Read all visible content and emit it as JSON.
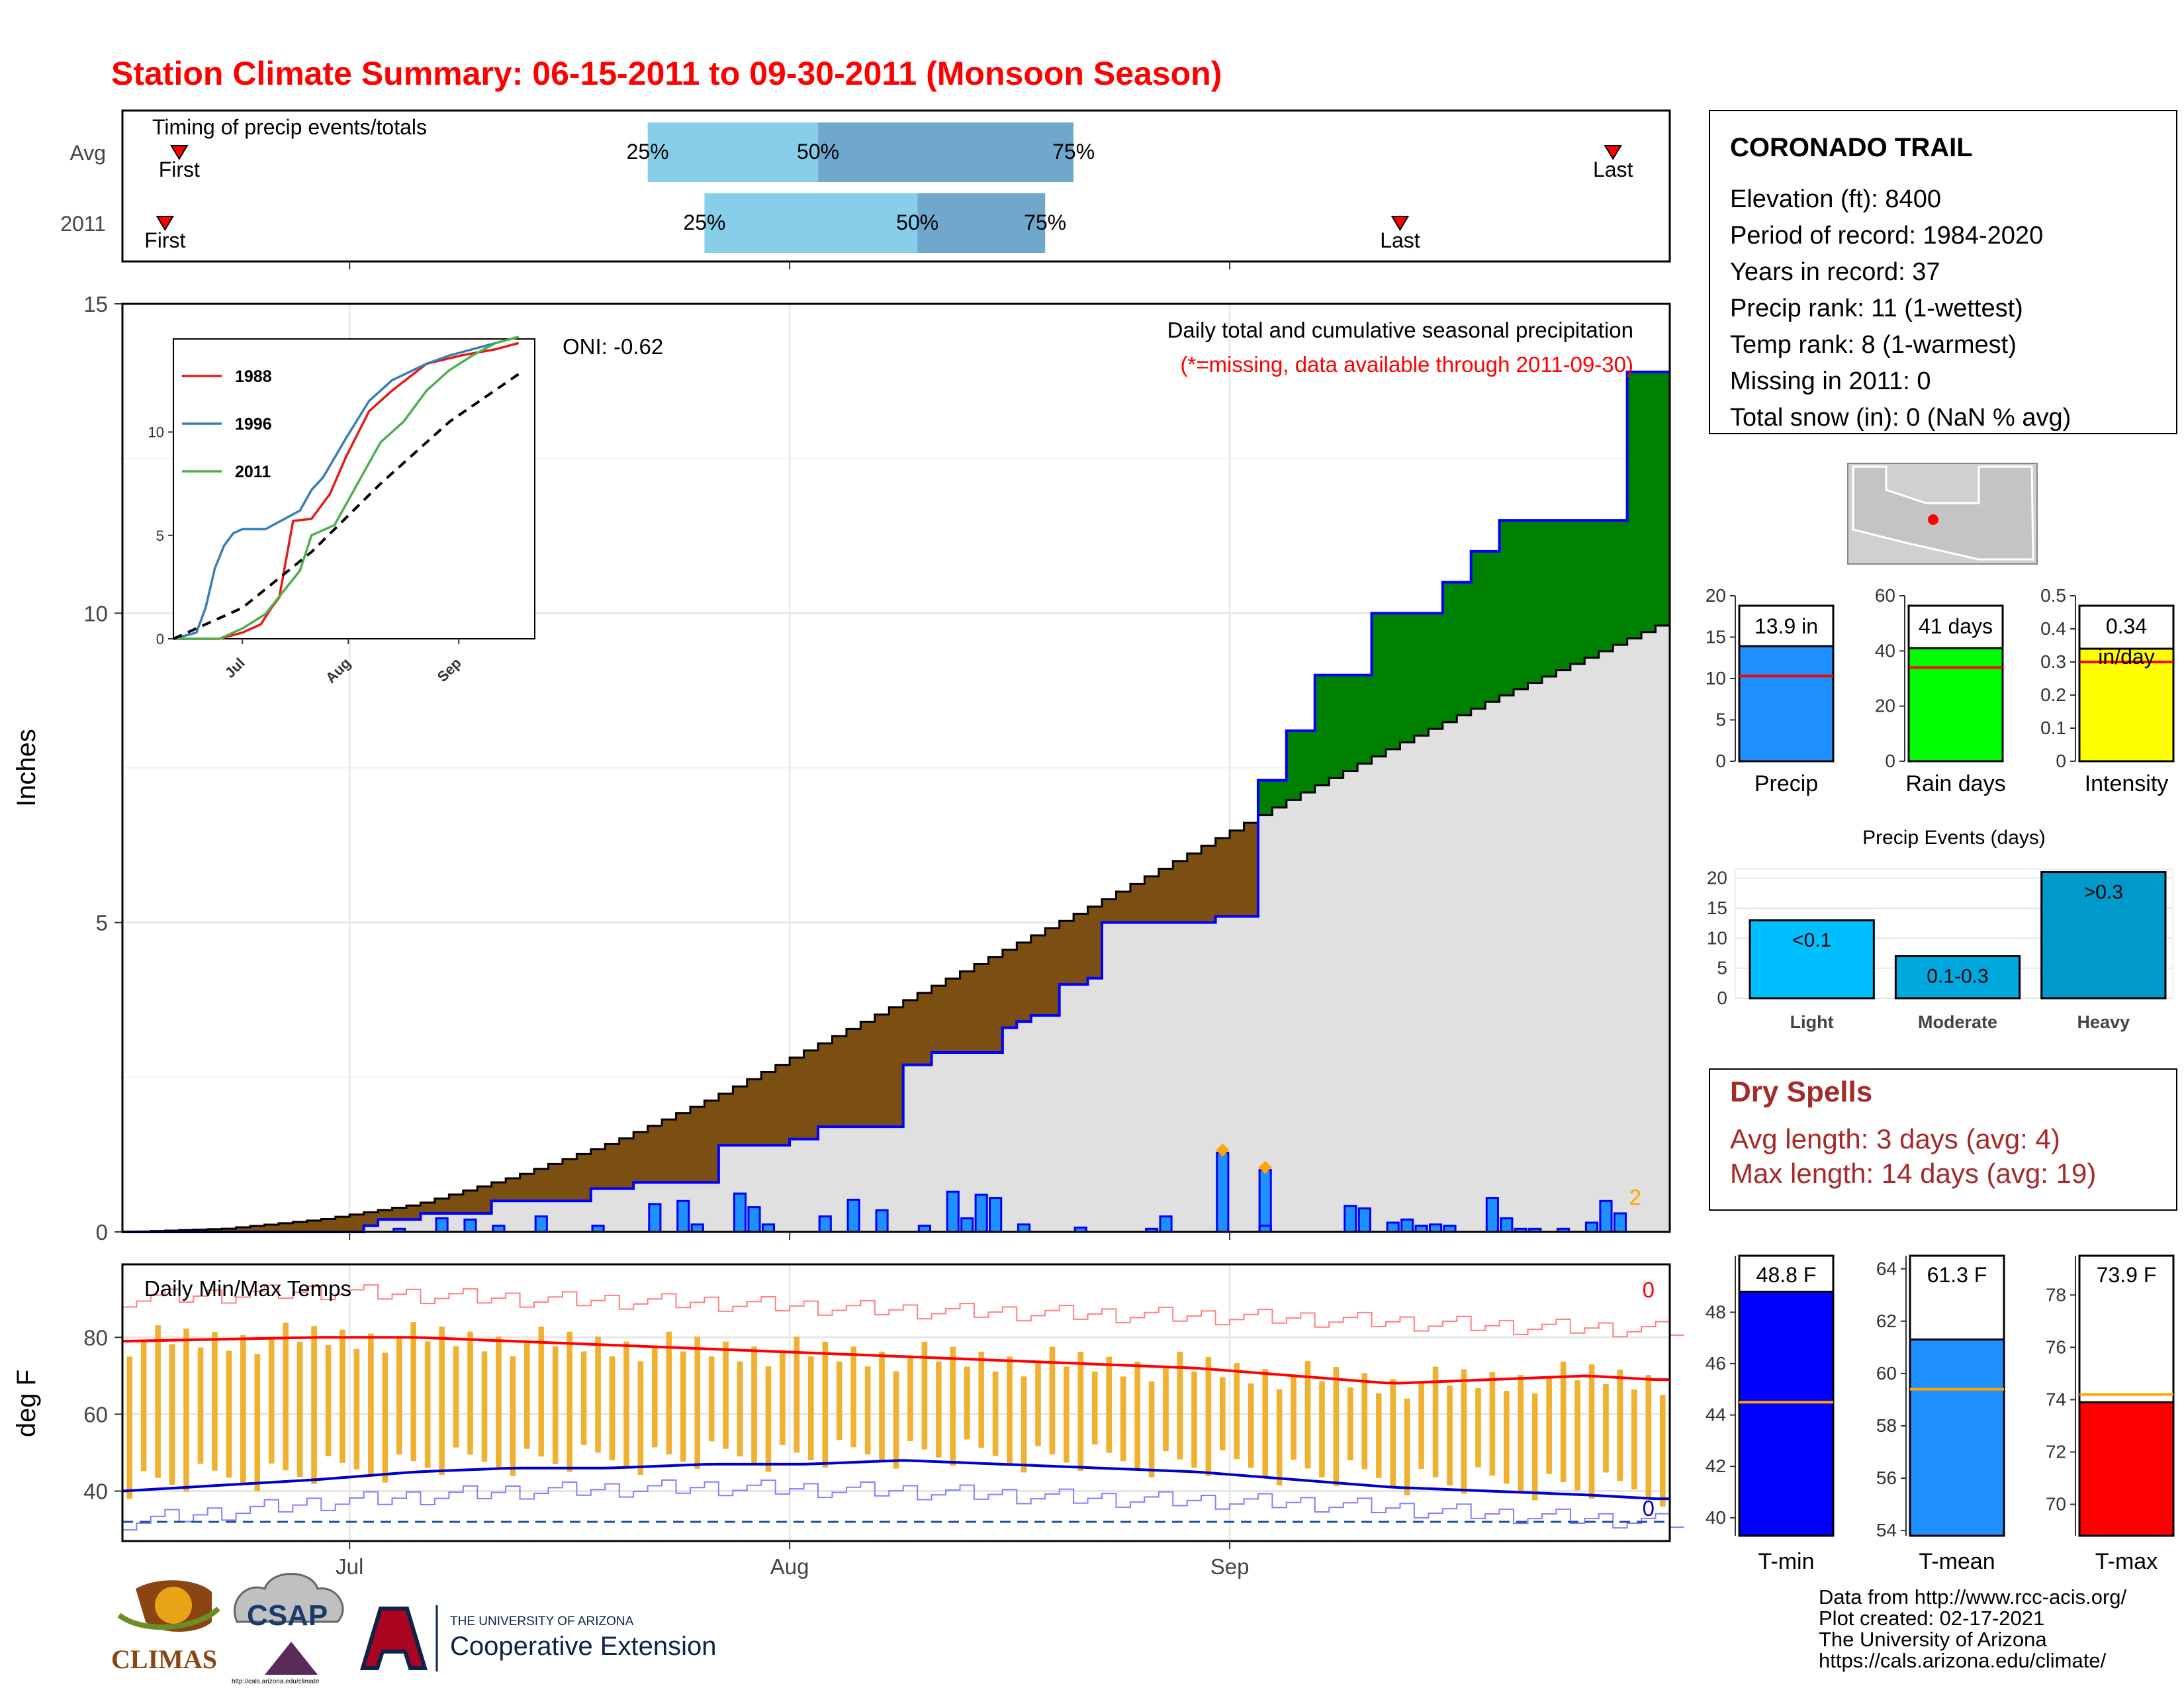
{
  "title": "Station Climate Summary: 06-15-2011 to 09-30-2011 (Monsoon Season)",
  "timing": {
    "label": "Timing of precip events/totals",
    "rows": [
      {
        "name": "Avg",
        "first_date": "2011-06-19",
        "last_date": "2011-09-28",
        "p25_date": "2011-07-22",
        "p50_date": "2011-08-03",
        "p75_date": "2011-08-21"
      },
      {
        "name": "2011",
        "first_date": "2011-06-18",
        "last_date": "2011-09-13",
        "p25_date": "2011-07-26",
        "p50_date": "2011-08-10",
        "p75_date": "2011-08-19"
      }
    ],
    "marker_labels": {
      "first": "First",
      "last": "Last",
      "p25": "25%",
      "p50": "50%",
      "p75": "75%"
    },
    "colors": {
      "light": "#87ceeb",
      "dark": "#6fa8cc",
      "marker": "#ff0000"
    }
  },
  "main": {
    "ylabel": "Inches",
    "annotation": "Daily total and cumulative seasonal precipitation",
    "missing_note": "(*=missing, data available through 2011-09-30)",
    "oni": "ONI: -0.62",
    "missing_count": "2",
    "colors": {
      "wet": "#008000",
      "dry": "#7b4f12",
      "avg_fill": "#e0e0e0",
      "bar": "#1e90ff",
      "bar_edge": "#0000ff",
      "line": "#0000ff"
    }
  },
  "inset": {
    "legend": [
      {
        "name": "1988",
        "color": "#e41a1c"
      },
      {
        "name": "1996",
        "color": "#377eb8"
      },
      {
        "name": "2011",
        "color": "#4daf4a"
      }
    ]
  },
  "temps": {
    "label": "Daily Min/Max Temps",
    "ylabel": "deg F",
    "top_count": "0",
    "bottom_count": "0",
    "colors": {
      "bar": "#f0b030",
      "max_line": "#ff0000",
      "min_line": "#0000cd"
    }
  },
  "station": {
    "name": "CORONADO TRAIL",
    "lines": [
      "Elevation (ft): 8400",
      "Period of record: 1984-2020",
      "Years in record: 37",
      "Precip rank: 11 (1-wettest)",
      "Temp rank: 8 (1-warmest)",
      "Missing in 2011: 0",
      "Total snow (in): 0 (NaN % avg)"
    ]
  },
  "summary_bars": [
    {
      "name": "Precip",
      "label": "13.9 in",
      "value": 13.9,
      "avg": 10.3,
      "ymax": 20,
      "ticks": [
        0,
        5,
        10,
        15,
        20
      ],
      "color": "#1e90ff"
    },
    {
      "name": "Rain days",
      "label": "41 days",
      "value": 41,
      "avg": 34,
      "ymax": 60,
      "ticks": [
        0,
        20,
        40,
        60
      ],
      "color": "#00ff00"
    },
    {
      "name": "Intensity",
      "label": "0.34",
      "label2": "in/day",
      "value": 0.34,
      "avg": 0.3,
      "ymax": 0.5,
      "ticks": [
        0.0,
        0.1,
        0.2,
        0.3,
        0.4,
        0.5
      ],
      "color": "#ffff00"
    }
  ],
  "events": {
    "title": "Precip Events (days)",
    "categories": [
      "Light",
      "Moderate",
      "Heavy"
    ],
    "labels": [
      "<0.1",
      "0.1-0.3",
      ">0.3"
    ],
    "values": [
      13,
      7,
      21
    ],
    "ticks": [
      0,
      5,
      10,
      15,
      20
    ],
    "colors": [
      "#00bfff",
      "#00a8e0",
      "#0099cc"
    ]
  },
  "dry_spells": {
    "title": "Dry Spells",
    "lines": [
      "Avg length: 3 days (avg: 4)",
      "Max length: 14 days (avg: 19)"
    ]
  },
  "temp_bars": [
    {
      "name": "T-min",
      "label": "48.8 F",
      "value": 48.8,
      "avg": 44.5,
      "ymin": 39.3,
      "ymax": 50.2,
      "ticks": [
        40,
        42,
        44,
        46,
        48
      ],
      "color": "#0000ff"
    },
    {
      "name": "T-mean",
      "label": "61.3 F",
      "value": 61.3,
      "avg": 59.4,
      "ymin": 53.8,
      "ymax": 64.5,
      "ticks": [
        54,
        56,
        58,
        60,
        62,
        64
      ],
      "color": "#1e90ff"
    },
    {
      "name": "T-max",
      "label": "73.9 F",
      "value": 73.9,
      "avg": 74.2,
      "ymin": 68.8,
      "ymax": 79.5,
      "ticks": [
        70,
        72,
        74,
        76,
        78
      ],
      "color": "#ff0000"
    }
  ],
  "footer": [
    "Data from http://www.rcc-acis.org/",
    "Plot created: 02-17-2021",
    "The University of Arizona",
    "https://cals.arizona.edu/climate/"
  ],
  "logos": {
    "climas": "CLIMAS",
    "csap": "CSAP",
    "csap_url": "http://cals.arizona.edu/climate",
    "ua_small": "THE UNIVERSITY OF ARIZONA",
    "coop": "Cooperative Extension"
  },
  "chart_data": [
    {
      "type": "area",
      "title": "Daily total and cumulative seasonal precipitation",
      "ylabel": "Inches",
      "ylim": [
        0,
        15
      ],
      "x_ticks": [
        "Jul",
        "Aug",
        "Sep"
      ],
      "start_date": "2011-06-15",
      "end_date": "2011-09-30",
      "series": [
        {
          "name": "cumulative_2011_knots",
          "x": [
            0,
            20,
            24,
            26,
            30,
            37,
            40,
            47,
            51,
            53,
            61,
            67,
            68,
            70,
            79,
            82,
            89,
            91,
            92,
            95,
            98,
            99,
            100,
            105,
            109,
            111,
            112,
            115,
            116,
            117,
            118,
            122,
            127,
            134,
            137,
            140,
            153,
            157
          ],
          "values": [
            0,
            0,
            0.1,
            0.2,
            0.3,
            0.5,
            0.5,
            0.7,
            0.8,
            0.8,
            1.4,
            1.5,
            1.5,
            1.7,
            2.7,
            2.9,
            3.3,
            3.4,
            3.5,
            4.0,
            4.1,
            4.8,
            5.0,
            5.0,
            5.0,
            5.1,
            5.1,
            6.0,
            7.3,
            7.3,
            8.1,
            9.0,
            10.0,
            10.5,
            11.0,
            11.5,
            13.9,
            13.9
          ]
        },
        {
          "name": "average_cumulative_knots",
          "x": [
            0,
            10,
            20,
            30,
            40,
            50,
            60,
            70,
            80,
            90,
            100,
            110,
            120,
            130,
            140,
            150,
            157
          ],
          "values": [
            0,
            0.05,
            0.2,
            0.45,
            0.9,
            1.45,
            2.15,
            2.95,
            3.75,
            4.55,
            5.35,
            6.2,
            7.05,
            7.85,
            8.6,
            9.3,
            9.8
          ]
        }
      ],
      "daily_bars": [
        {
          "date": "2011-07-09",
          "value": 0.05
        },
        {
          "date": "2011-07-13",
          "value": 0.22
        },
        {
          "date": "2011-07-15",
          "value": 0.2
        },
        {
          "date": "2011-07-18",
          "value": 0.1
        },
        {
          "date": "2011-07-21",
          "value": 0.25
        },
        {
          "date": "2011-07-27",
          "value": 0.1
        },
        {
          "date": "2011-07-31",
          "value": 0.45
        },
        {
          "date": "2011-08-03",
          "value": 0.5
        },
        {
          "date": "2011-08-04",
          "value": 0.12
        },
        {
          "date": "2011-08-08",
          "value": 0.62
        },
        {
          "date": "2011-08-09",
          "value": 0.4
        },
        {
          "date": "2011-08-11",
          "value": 0.12
        },
        {
          "date": "2011-08-15",
          "value": 0.25
        },
        {
          "date": "2011-08-18",
          "value": 0.52
        },
        {
          "date": "2011-08-20",
          "value": 0.35
        },
        {
          "date": "2011-08-24",
          "value": 0.1
        },
        {
          "date": "2011-08-27",
          "value": 0.65
        },
        {
          "date": "2011-08-28",
          "value": 0.22
        },
        {
          "date": "2011-08-30",
          "value": 0.6
        },
        {
          "date": "2011-08-31",
          "value": 0.55
        },
        {
          "date": "2011-09-02",
          "value": 0.12
        },
        {
          "date": "2011-09-07",
          "value": 0.07
        },
        {
          "date": "2011-09-14",
          "value": 0.05
        },
        {
          "date": "2011-09-15",
          "value": 0.25
        },
        {
          "date": "2011-09-20",
          "value": 1.28
        },
        {
          "date": "2011-09-23",
          "value": 1.0
        },
        {
          "date": "2011-09-24",
          "value": 0.1
        },
        {
          "date": "2011-10-01",
          "value": 0.42
        },
        {
          "date": "2011-10-02",
          "value": 0.38
        },
        {
          "date": "2011-10-05",
          "value": 0.15
        },
        {
          "date": "2011-10-06",
          "value": 0.2
        },
        {
          "date": "2011-10-07",
          "value": 0.1
        },
        {
          "date": "2011-10-09",
          "value": 0.12
        },
        {
          "date": "2011-10-10",
          "value": 0.1
        },
        {
          "date": "2011-10-14",
          "value": 0.55
        },
        {
          "date": "2011-10-15",
          "value": 0.22
        },
        {
          "date": "2011-10-16",
          "value": 0.05
        },
        {
          "date": "2011-10-18",
          "value": 0.05
        },
        {
          "date": "2011-10-20",
          "value": 0.05
        },
        {
          "date": "2011-10-22",
          "value": 0.15
        },
        {
          "date": "2011-10-24",
          "value": 0.5
        },
        {
          "date": "2011-10-25",
          "value": 0.3
        }
      ]
    },
    {
      "type": "line",
      "title": "",
      "ylim": [
        0,
        14.5
      ],
      "x_ticks": [
        "Jul",
        "Aug",
        "Sep"
      ],
      "series": [
        {
          "name": "1988",
          "x": [
            0,
            20,
            30,
            38,
            42,
            46,
            52,
            60,
            68,
            75,
            85,
            95,
            110,
            125,
            140,
            150
          ],
          "values": [
            0,
            0,
            0.3,
            0.7,
            1.4,
            2.0,
            5.7,
            5.8,
            7.0,
            8.8,
            11.0,
            12.0,
            13.3,
            13.7,
            14.0,
            14.3
          ]
        },
        {
          "name": "1996",
          "x": [
            0,
            10,
            14,
            18,
            22,
            26,
            30,
            40,
            55,
            60,
            65,
            75,
            85,
            95,
            110,
            120,
            130,
            150
          ],
          "values": [
            0,
            0.3,
            1.5,
            3.4,
            4.5,
            5.1,
            5.3,
            5.3,
            6.2,
            7.2,
            7.8,
            9.7,
            11.5,
            12.5,
            13.3,
            13.7,
            14.0,
            14.6
          ]
        },
        {
          "name": "2011",
          "x": [
            0,
            20,
            30,
            40,
            50,
            55,
            60,
            70,
            80,
            90,
            100,
            110,
            120,
            130,
            140,
            150
          ],
          "values": [
            0,
            0,
            0.5,
            1.2,
            2.6,
            3.3,
            5.0,
            5.5,
            7.5,
            9.5,
            10.5,
            12.0,
            13.0,
            13.7,
            14.3,
            14.6
          ]
        },
        {
          "name": "average",
          "x": [
            0,
            30,
            60,
            90,
            120,
            150
          ],
          "values": [
            0,
            1.5,
            4.2,
            7.5,
            10.5,
            12.8
          ]
        }
      ],
      "y_ticks": [
        0,
        5,
        10
      ],
      "legend": [
        "1988",
        "1996",
        "2011"
      ]
    },
    {
      "type": "line",
      "title": "Daily Min/Max Temps",
      "ylabel": "deg F",
      "ylim": [
        27,
        99
      ],
      "y_ticks": [
        40,
        60,
        80
      ],
      "x_ticks": [
        "Jul",
        "Aug",
        "Sep"
      ],
      "series": [
        {
          "name": "avg_max",
          "x": [
            0,
            20,
            30,
            40,
            50,
            60,
            70,
            80,
            90,
            100,
            110,
            120,
            130,
            140,
            150,
            157
          ],
          "values": [
            79,
            80,
            80,
            79,
            78,
            77,
            76,
            75,
            74,
            73,
            72,
            70,
            68,
            69,
            70,
            69
          ]
        },
        {
          "name": "avg_min",
          "x": [
            0,
            20,
            30,
            40,
            50,
            60,
            70,
            80,
            90,
            100,
            110,
            120,
            130,
            140,
            150,
            157
          ],
          "values": [
            40,
            43,
            45,
            46,
            46,
            47,
            47,
            48,
            47,
            46,
            45,
            43,
            41,
            40,
            39,
            38
          ]
        },
        {
          "name": "record_max",
          "x": [
            0,
            20,
            40,
            60,
            80,
            100,
            120,
            140,
            157
          ],
          "values": [
            90,
            92,
            90,
            89,
            87,
            86,
            85,
            83,
            82
          ]
        },
        {
          "name": "record_min",
          "x": [
            0,
            20,
            40,
            60,
            80,
            100,
            120,
            140,
            157
          ],
          "values": [
            32,
            37,
            40,
            41,
            40,
            38,
            37,
            34,
            32
          ]
        }
      ],
      "avg_line_value": 32
    },
    {
      "type": "bar",
      "title": "Precip Events (days)",
      "categories": [
        "Light",
        "Moderate",
        "Heavy"
      ],
      "values": [
        13,
        7,
        21
      ]
    }
  ]
}
